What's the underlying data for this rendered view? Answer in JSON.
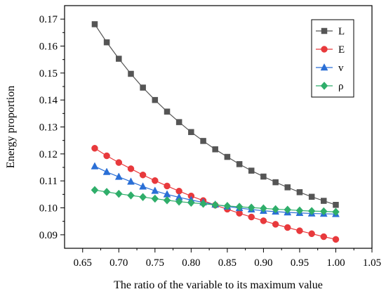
{
  "chart_data": {
    "type": "line",
    "xlabel": "The ratio of the variable to its maximum value",
    "ylabel": "Energy proportion",
    "xlim": [
      0.625,
      1.05
    ],
    "ylim": [
      0.085,
      0.175
    ],
    "xticks": [
      0.65,
      0.7,
      0.75,
      0.8,
      0.85,
      0.9,
      0.95,
      1.0,
      1.05
    ],
    "xtick_labels": [
      "0.65",
      "0.70",
      "0.75",
      "0.80",
      "0.85",
      "0.90",
      "0.95",
      "1.00",
      "1.05"
    ],
    "yticks": [
      0.09,
      0.1,
      0.11,
      0.12,
      0.13,
      0.14,
      0.15,
      0.16,
      0.17
    ],
    "ytick_labels": [
      "0.09",
      "0.10",
      "0.11",
      "0.12",
      "0.13",
      "0.14",
      "0.15",
      "0.16",
      "0.17"
    ],
    "grid": false,
    "legend_position": "top-right",
    "x": [
      0.6667,
      0.6833,
      0.7,
      0.7167,
      0.7333,
      0.75,
      0.7667,
      0.7833,
      0.8,
      0.8167,
      0.8333,
      0.85,
      0.8667,
      0.8833,
      0.9,
      0.9167,
      0.9333,
      0.95,
      0.9667,
      0.9833,
      1.0
    ],
    "series": [
      {
        "name": "L",
        "color": "#555555",
        "marker": "square",
        "values": [
          0.1681,
          0.1614,
          0.1553,
          0.1497,
          0.1446,
          0.14,
          0.1357,
          0.1318,
          0.1281,
          0.1248,
          0.1217,
          0.1189,
          0.1162,
          0.1138,
          0.1116,
          0.1095,
          0.1076,
          0.1058,
          0.1041,
          0.1026,
          0.1011
        ]
      },
      {
        "name": "E",
        "color": "#e8393c",
        "marker": "circle",
        "values": [
          0.1221,
          0.1193,
          0.1168,
          0.1145,
          0.1122,
          0.1101,
          0.1081,
          0.1062,
          0.1044,
          0.1027,
          0.101,
          0.0995,
          0.098,
          0.0966,
          0.0952,
          0.0939,
          0.0927,
          0.0915,
          0.0904,
          0.0893,
          0.0883
        ]
      },
      {
        "name": "v",
        "color": "#2a6fd6",
        "marker": "triangle",
        "values": [
          0.1154,
          0.1133,
          0.1115,
          0.1097,
          0.1079,
          0.1063,
          0.105,
          0.1039,
          0.1029,
          0.102,
          0.1012,
          0.1005,
          0.0999,
          0.0994,
          0.0989,
          0.0986,
          0.0983,
          0.0981,
          0.0979,
          0.0978,
          0.0977
        ]
      },
      {
        "name": "ρ",
        "color": "#2fae6a",
        "marker": "diamond",
        "values": [
          0.1066,
          0.1059,
          0.1052,
          0.1046,
          0.104,
          0.1034,
          0.1028,
          0.1023,
          0.1019,
          0.1015,
          0.1011,
          0.1007,
          0.1004,
          0.1001,
          0.0998,
          0.0995,
          0.0993,
          0.099,
          0.0988,
          0.0987,
          0.0985
        ]
      }
    ]
  }
}
